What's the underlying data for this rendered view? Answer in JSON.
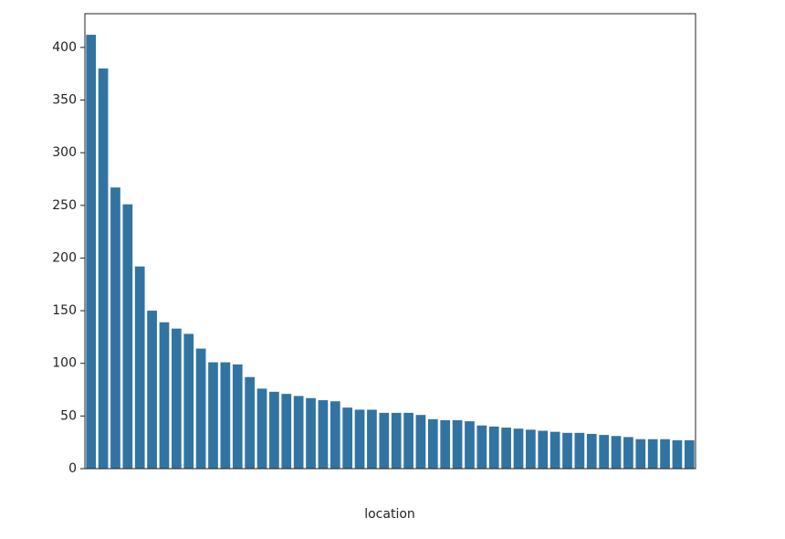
{
  "chart_data": {
    "type": "bar",
    "x_label": "location",
    "categories": [
      null,
      null,
      null,
      null,
      null,
      null,
      null,
      null,
      null,
      null,
      null,
      null,
      null,
      null,
      null,
      null,
      null,
      null,
      null,
      null,
      null,
      null,
      null,
      null,
      null,
      null,
      null,
      null,
      null,
      null,
      null,
      null,
      null,
      null,
      null,
      null,
      null,
      null,
      null,
      null,
      null,
      null,
      null,
      null,
      null,
      null,
      null,
      null,
      null,
      null
    ],
    "values": [
      412,
      380,
      267,
      251,
      192,
      150,
      139,
      133,
      128,
      114,
      101,
      101,
      99,
      87,
      76,
      73,
      71,
      69,
      67,
      65,
      64,
      58,
      56,
      56,
      53,
      53,
      53,
      51,
      47,
      46,
      46,
      45,
      41,
      40,
      39,
      38,
      37,
      36,
      35,
      34,
      34,
      33,
      32,
      31,
      30,
      28,
      28,
      28,
      27,
      27
    ],
    "color": "#3274a1",
    "ylim": [
      0,
      432
    ],
    "yticks": [
      0,
      50,
      100,
      150,
      200,
      250,
      300,
      350,
      400
    ],
    "grid": false
  }
}
